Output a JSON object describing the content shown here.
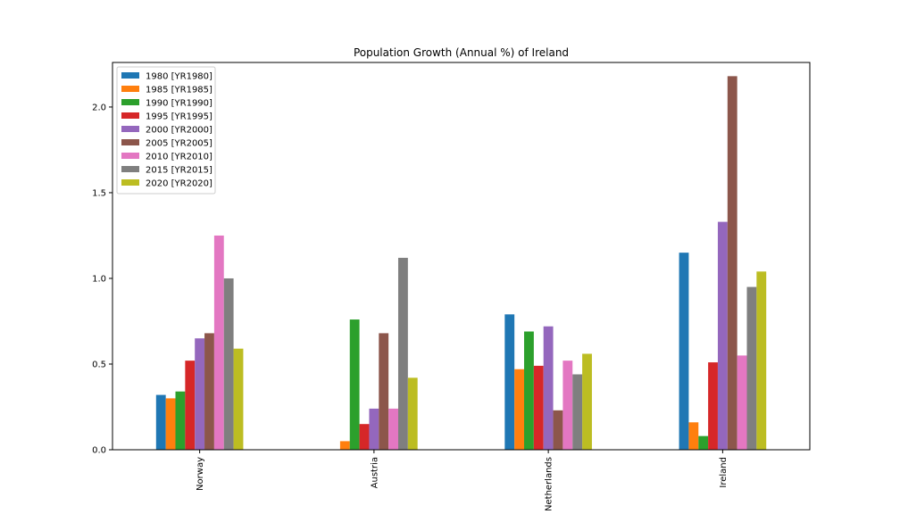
{
  "chart_data": {
    "type": "bar",
    "title": "Population Growth (Annual %) of Ireland",
    "xlabel": "",
    "ylabel": "",
    "categories": [
      "Norway",
      "Austria",
      "Netherlands",
      "Ireland"
    ],
    "series": [
      {
        "name": "1980 [YR1980]",
        "color": "#1f77b4",
        "values": [
          0.32,
          0.0,
          0.79,
          1.15
        ]
      },
      {
        "name": "1985 [YR1985]",
        "color": "#ff7f0e",
        "values": [
          0.3,
          0.05,
          0.47,
          0.16
        ]
      },
      {
        "name": "1990 [YR1990]",
        "color": "#2ca02c",
        "values": [
          0.34,
          0.76,
          0.69,
          0.08
        ]
      },
      {
        "name": "1995 [YR1995]",
        "color": "#d62728",
        "values": [
          0.52,
          0.15,
          0.49,
          0.51
        ]
      },
      {
        "name": "2000 [YR2000]",
        "color": "#9467bd",
        "values": [
          0.65,
          0.24,
          0.72,
          1.33
        ]
      },
      {
        "name": "2005 [YR2005]",
        "color": "#8c564b",
        "values": [
          0.68,
          0.68,
          0.23,
          2.18
        ]
      },
      {
        "name": "2010 [YR2010]",
        "color": "#e377c2",
        "values": [
          1.25,
          0.24,
          0.52,
          0.55
        ]
      },
      {
        "name": "2015 [YR2015]",
        "color": "#7f7f7f",
        "values": [
          1.0,
          1.12,
          0.44,
          0.95
        ]
      },
      {
        "name": "2020 [YR2020]",
        "color": "#bcbd22",
        "values": [
          0.59,
          0.42,
          0.56,
          1.04
        ]
      }
    ],
    "ylim": [
      0,
      2.26
    ],
    "yticks": [
      0.0,
      0.5,
      1.0,
      1.5,
      2.0
    ],
    "ytick_labels": [
      "0.0",
      "0.5",
      "1.0",
      "1.5",
      "2.0"
    ],
    "grid": false,
    "legend_position": "top-left"
  }
}
